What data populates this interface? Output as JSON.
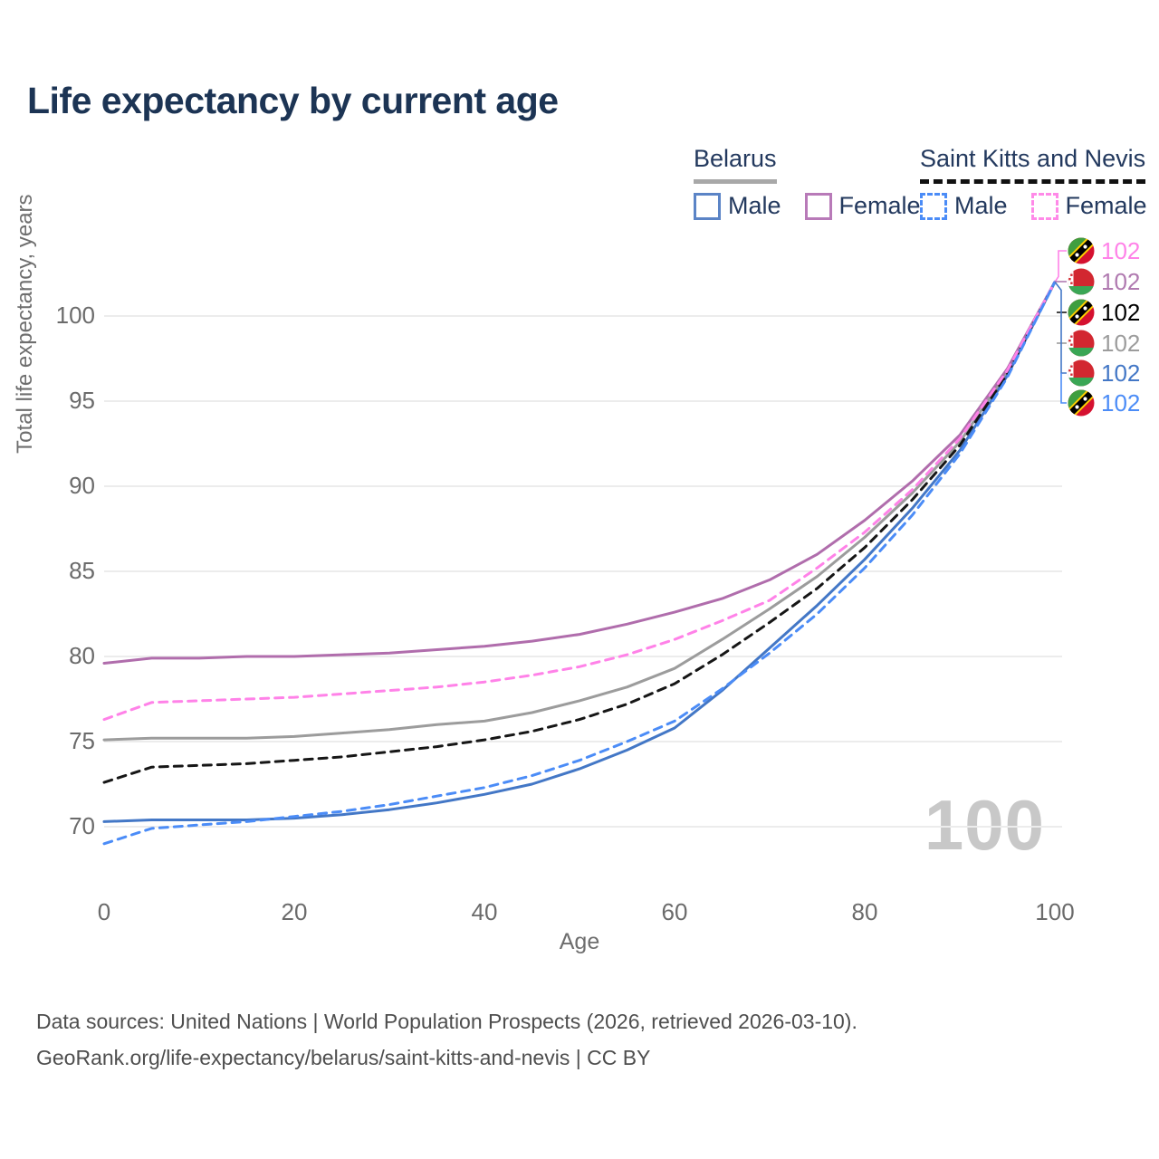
{
  "title": "Life expectancy by current age",
  "watermark": "100",
  "legend": {
    "groups": [
      {
        "country": "Belarus",
        "items": [
          {
            "label": "Male"
          },
          {
            "label": "Female"
          }
        ]
      },
      {
        "country": "Saint Kitts and Nevis",
        "items": [
          {
            "label": "Male"
          },
          {
            "label": "Female"
          }
        ]
      }
    ]
  },
  "footer": {
    "line1": "Data sources: United Nations | World Population Prospects (2026, retrieved 2026-03-10).",
    "line2": "GeoRank.org/life-expectancy/belarus/saint-kitts-and-nevis | CC BY"
  },
  "colors": {
    "belarus_male": "#4377c6",
    "belarus_female": "#b06dac",
    "belarus_total": "#9c9c9c",
    "skn_male": "#4b8cf7",
    "skn_female": "#ff82e8",
    "skn_total": "#161616",
    "gridline": "#ececec",
    "title_text": "#1c3454",
    "axis_text": "#6b6b6b"
  },
  "chart_data": {
    "type": "line",
    "title": "Life expectancy by current age",
    "xlabel": "Age",
    "ylabel": "Total life expectancy, years",
    "xlim": [
      0,
      100
    ],
    "ylim": [
      67,
      103
    ],
    "x_ticks": [
      0,
      20,
      40,
      60,
      80,
      100
    ],
    "y_ticks": [
      100,
      95,
      90,
      85,
      80,
      75,
      70
    ],
    "grid": "horizontal",
    "legend_position": "top-right",
    "x": [
      0,
      5,
      10,
      15,
      20,
      25,
      30,
      35,
      40,
      45,
      50,
      55,
      60,
      65,
      70,
      75,
      80,
      85,
      90,
      95,
      100
    ],
    "series": [
      {
        "name": "Belarus Total",
        "country": "Belarus",
        "sex": "total",
        "color": "#9c9c9c",
        "dash": false,
        "end_label": "102",
        "values": [
          75.1,
          75.2,
          75.2,
          75.2,
          75.3,
          75.5,
          75.7,
          76.0,
          76.2,
          76.7,
          77.4,
          78.2,
          79.3,
          81.0,
          82.8,
          84.7,
          87.0,
          89.6,
          92.6,
          96.7,
          102
        ]
      },
      {
        "name": "Saint Kitts and Nevis Total",
        "country": "Saint Kitts and Nevis",
        "sex": "total",
        "color": "#161616",
        "dash": true,
        "end_label": "102",
        "values": [
          72.6,
          73.5,
          73.6,
          73.7,
          73.9,
          74.1,
          74.4,
          74.7,
          75.1,
          75.6,
          76.3,
          77.2,
          78.4,
          80.1,
          82.0,
          84.0,
          86.4,
          89.2,
          92.4,
          96.6,
          102
        ]
      },
      {
        "name": "Belarus Female",
        "country": "Belarus",
        "sex": "female",
        "color": "#b06dac",
        "dash": false,
        "end_label": "102",
        "values": [
          79.6,
          79.9,
          79.9,
          80.0,
          80.0,
          80.1,
          80.2,
          80.4,
          80.6,
          80.9,
          81.3,
          81.9,
          82.6,
          83.4,
          84.5,
          86.0,
          88.0,
          90.3,
          93.0,
          96.9,
          102
        ]
      },
      {
        "name": "Belarus Male",
        "country": "Belarus",
        "sex": "male",
        "color": "#4377c6",
        "dash": false,
        "end_label": "102",
        "values": [
          70.3,
          70.4,
          70.4,
          70.4,
          70.5,
          70.7,
          71.0,
          71.4,
          71.9,
          72.5,
          73.4,
          74.5,
          75.8,
          78.0,
          80.5,
          83.0,
          85.7,
          88.7,
          92.1,
          96.5,
          102
        ]
      },
      {
        "name": "Saint Kitts and Nevis Female",
        "country": "Saint Kitts and Nevis",
        "sex": "female",
        "color": "#ff82e8",
        "dash": true,
        "end_label": "102",
        "values": [
          76.3,
          77.3,
          77.4,
          77.5,
          77.6,
          77.8,
          78.0,
          78.2,
          78.5,
          78.9,
          79.4,
          80.1,
          81.0,
          82.1,
          83.3,
          85.2,
          87.3,
          89.8,
          92.8,
          96.8,
          102
        ]
      },
      {
        "name": "Saint Kitts and Nevis Male",
        "country": "Saint Kitts and Nevis",
        "sex": "male",
        "color": "#4b8cf7",
        "dash": true,
        "end_label": "102",
        "values": [
          69.0,
          69.9,
          70.1,
          70.3,
          70.6,
          70.9,
          71.3,
          71.8,
          72.3,
          73.0,
          73.9,
          75.0,
          76.2,
          78.1,
          80.2,
          82.5,
          85.2,
          88.3,
          91.9,
          96.4,
          102
        ]
      }
    ]
  },
  "side_labels": [
    {
      "value": "102",
      "color": "#ff82e8",
      "flag": "skn"
    },
    {
      "value": "102",
      "color": "#b07ab0",
      "flag": "belarus"
    },
    {
      "value": "102",
      "color": "#000000",
      "flag": "skn"
    },
    {
      "value": "102",
      "color": "#9c9c9c",
      "flag": "belarus"
    },
    {
      "value": "102",
      "color": "#4377c6",
      "flag": "belarus"
    },
    {
      "value": "102",
      "color": "#4b8cf7",
      "flag": "skn"
    }
  ]
}
